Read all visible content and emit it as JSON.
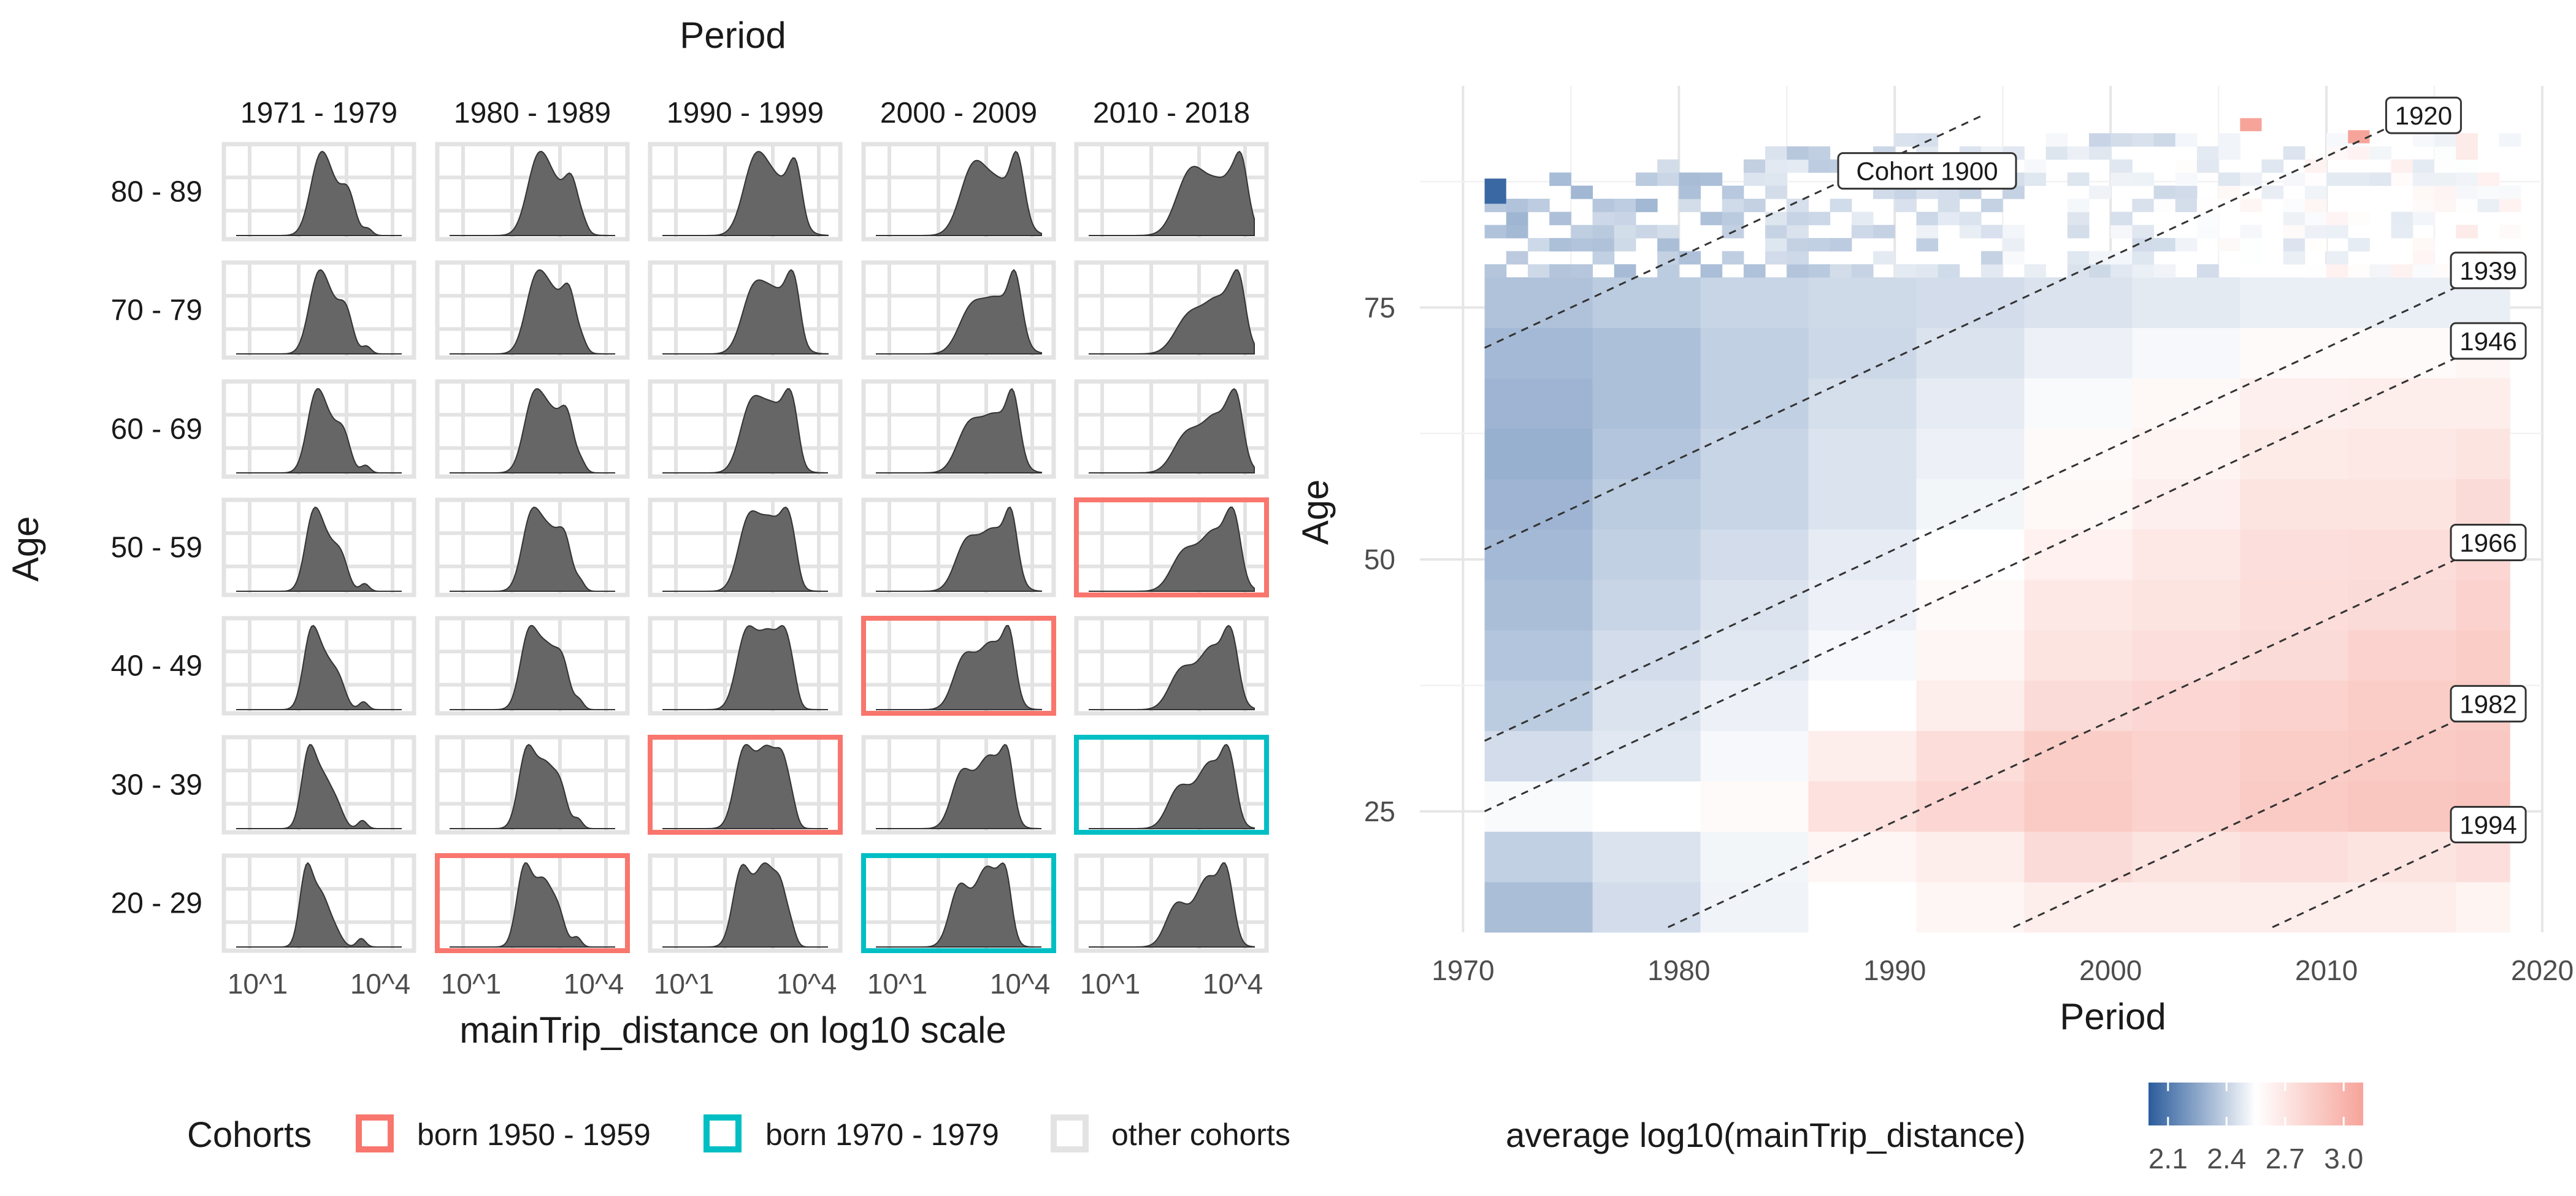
{
  "left_panel": {
    "title": "Period",
    "ylabel": "Age",
    "xlabel": "mainTrip_distance on log10 scale",
    "periods": [
      "1971 - 1979",
      "1980 - 1989",
      "1990 - 1999",
      "2000 - 2009",
      "2010 - 2018"
    ],
    "ages": [
      "80 - 89",
      "70 - 79",
      "60 - 69",
      "50 - 59",
      "40 - 49",
      "30 - 39",
      "20 - 29"
    ],
    "x_ticks": [
      "10^1",
      "10^4"
    ]
  },
  "left_legend": {
    "title": "Cohorts",
    "items": [
      {
        "label": "born 1950 - 1959",
        "color": "#F8766D"
      },
      {
        "label": "born 1970 - 1979",
        "color": "#00BFC4"
      },
      {
        "label": "other cohorts",
        "color": "#E3E3E3"
      }
    ]
  },
  "right_panel": {
    "xlabel": "Period",
    "ylabel": "Age",
    "x_ticks": [
      "1970",
      "1980",
      "1990",
      "2000",
      "2010",
      "2020"
    ],
    "y_ticks": [
      "25",
      "50",
      "75"
    ],
    "cohort_labels": [
      "Cohort 1900",
      "1920",
      "1939",
      "1946",
      "1966",
      "1982",
      "1994"
    ]
  },
  "right_legend": {
    "title": "average log10(mainTrip_distance)",
    "ticks": [
      "2.1",
      "2.4",
      "2.7",
      "3.0"
    ],
    "low_color": "#2B5C9C",
    "mid_color": "#FFFFFF",
    "high_color": "#F6A49A"
  },
  "chart_data": [
    {
      "type": "area",
      "title": "Period",
      "xlabel": "mainTrip_distance on log10 scale",
      "ylabel": "Age",
      "facet_columns": [
        "1971 - 1979",
        "1980 - 1989",
        "1990 - 1999",
        "2000 - 2009",
        "2010 - 2018"
      ],
      "facet_rows": [
        "80 - 89",
        "70 - 79",
        "60 - 69",
        "50 - 59",
        "40 - 49",
        "30 - 39",
        "20 - 29"
      ],
      "x_ticks": [
        "10^1",
        "10^4"
      ],
      "highlighted": {
        "born 1950 - 1959": [
          [
            "50 - 59",
            "2010 - 2018"
          ],
          [
            "40 - 49",
            "2000 - 2009"
          ],
          [
            "30 - 39",
            "1990 - 1999"
          ],
          [
            "20 - 29",
            "1980 - 1989"
          ]
        ],
        "born 1970 - 1979": [
          [
            "30 - 39",
            "2010 - 2018"
          ],
          [
            "20 - 29",
            "2000 - 2009"
          ]
        ]
      }
    },
    {
      "type": "heatmap",
      "xlabel": "Period",
      "ylabel": "Age",
      "xlim": [
        1968,
        2020
      ],
      "ylim": [
        13,
        97
      ],
      "x_ticks": [
        1970,
        1980,
        1990,
        2000,
        2010,
        2020
      ],
      "y_ticks": [
        25,
        50,
        75
      ],
      "color_scale": {
        "title": "average log10(mainTrip_distance)",
        "ticks": [
          2.1,
          2.4,
          2.7,
          3.0
        ]
      },
      "cohort_lines": [
        {
          "label": "Cohort 1900",
          "birth_year": 1900
        },
        {
          "label": "1920",
          "birth_year": 1920
        },
        {
          "label": "1939",
          "birth_year": 1939
        },
        {
          "label": "1946",
          "birth_year": 1946
        },
        {
          "label": "1966",
          "birth_year": 1966
        },
        {
          "label": "1982",
          "birth_year": 1982
        },
        {
          "label": "1994",
          "birth_year": 1994
        }
      ],
      "periods": [
        [
          1971,
          1976
        ],
        [
          1976,
          1981
        ],
        [
          1981,
          1986
        ],
        [
          1986,
          1991
        ],
        [
          1991,
          1996
        ],
        [
          1996,
          2001
        ],
        [
          2001,
          2006
        ],
        [
          2006,
          2011
        ],
        [
          2011,
          2016
        ],
        [
          2016,
          2018.5
        ]
      ],
      "age_bands": [
        [
          13,
          18
        ],
        [
          18,
          23
        ],
        [
          23,
          28
        ],
        [
          28,
          33
        ],
        [
          33,
          38
        ],
        [
          38,
          43
        ],
        [
          43,
          48
        ],
        [
          48,
          53
        ],
        [
          53,
          58
        ],
        [
          58,
          63
        ],
        [
          63,
          68
        ],
        [
          68,
          73
        ],
        [
          73,
          78
        ]
      ],
      "values": [
        [
          2.42,
          2.55,
          2.65,
          2.7,
          2.74,
          2.78,
          2.78,
          2.78,
          2.78,
          2.75
        ],
        [
          2.5,
          2.58,
          2.66,
          2.74,
          2.78,
          2.86,
          2.82,
          2.84,
          2.82,
          2.84
        ],
        [
          2.68,
          2.7,
          2.72,
          2.83,
          2.88,
          2.93,
          2.9,
          2.93,
          2.95,
          2.96
        ],
        [
          2.55,
          2.6,
          2.67,
          2.78,
          2.85,
          2.92,
          2.9,
          2.92,
          2.93,
          2.94
        ],
        [
          2.48,
          2.58,
          2.64,
          2.7,
          2.78,
          2.86,
          2.88,
          2.9,
          2.92,
          2.93
        ],
        [
          2.45,
          2.55,
          2.6,
          2.67,
          2.74,
          2.82,
          2.84,
          2.86,
          2.9,
          2.92
        ],
        [
          2.42,
          2.52,
          2.58,
          2.64,
          2.72,
          2.8,
          2.82,
          2.85,
          2.86,
          2.9
        ],
        [
          2.4,
          2.5,
          2.55,
          2.62,
          2.7,
          2.76,
          2.8,
          2.84,
          2.85,
          2.88
        ],
        [
          2.38,
          2.48,
          2.52,
          2.58,
          2.66,
          2.73,
          2.77,
          2.82,
          2.82,
          2.86
        ],
        [
          2.36,
          2.45,
          2.52,
          2.58,
          2.64,
          2.72,
          2.75,
          2.79,
          2.8,
          2.82
        ],
        [
          2.38,
          2.43,
          2.5,
          2.56,
          2.62,
          2.68,
          2.73,
          2.77,
          2.78,
          2.78
        ],
        [
          2.4,
          2.43,
          2.5,
          2.53,
          2.58,
          2.64,
          2.67,
          2.72,
          2.72,
          2.74
        ],
        [
          2.44,
          2.48,
          2.52,
          2.54,
          2.55,
          2.58,
          2.61,
          2.63,
          2.63,
          2.63
        ]
      ]
    }
  ]
}
